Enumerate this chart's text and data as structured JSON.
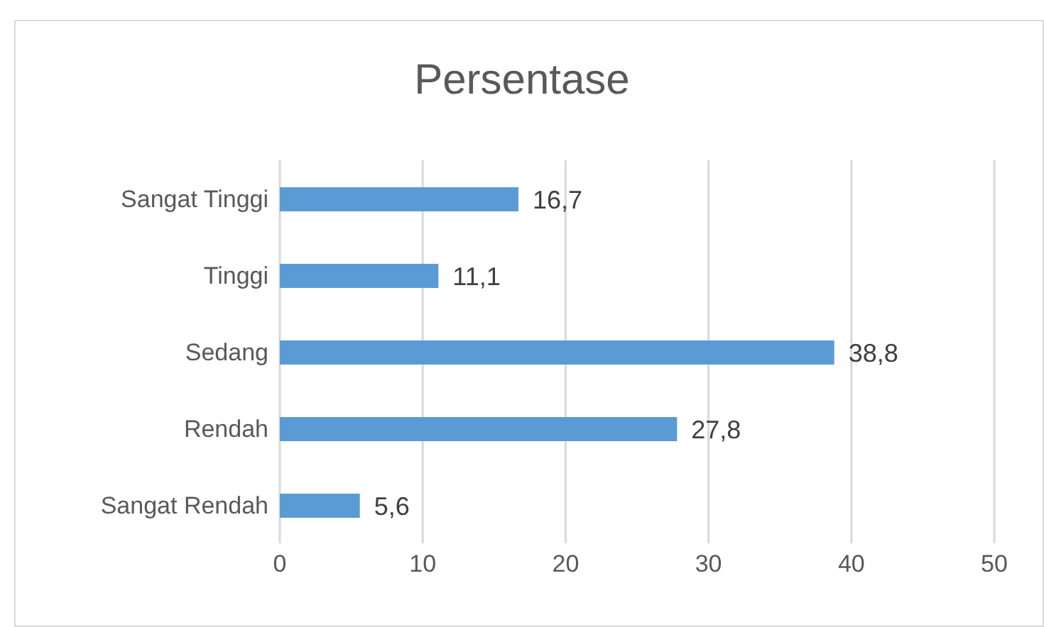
{
  "chart_data": {
    "type": "bar",
    "title": "Persentase",
    "orientation": "horizontal",
    "categories": [
      "Sangat Tinggi",
      "Tinggi",
      "Sedang",
      "Rendah",
      "Sangat Rendah"
    ],
    "values": [
      16.7,
      11.1,
      38.8,
      27.8,
      5.6
    ],
    "value_labels": [
      "16,7",
      "11,1",
      "38,8",
      "27,8",
      "5,6"
    ],
    "color": "#5b9bd5",
    "xlim": [
      0,
      50
    ],
    "xticks": [
      0,
      10,
      20,
      30,
      40,
      50
    ],
    "grid": "x",
    "legend": false
  }
}
